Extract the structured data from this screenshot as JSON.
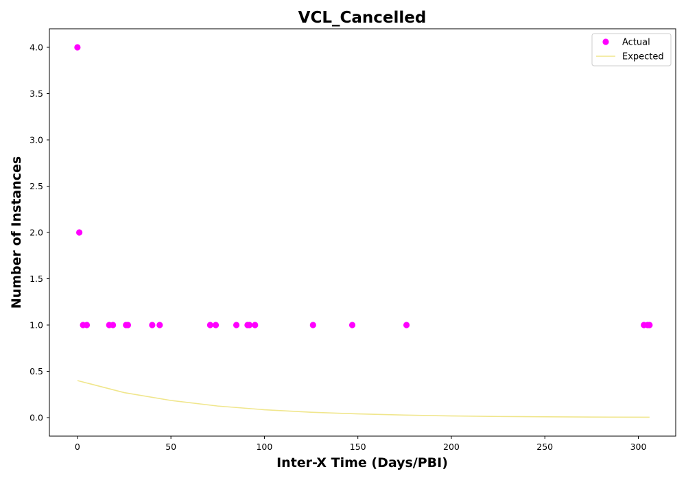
{
  "chart_data": {
    "type": "scatter",
    "title": "VCL_Cancelled",
    "xlabel": "Inter-X Time (Days/PBI)",
    "ylabel": "Number of Instances",
    "xlim": [
      -15,
      320
    ],
    "ylim": [
      -0.2,
      4.2
    ],
    "xticks": [
      0,
      50,
      100,
      150,
      200,
      250,
      300
    ],
    "yticks": [
      0.0,
      0.5,
      1.0,
      1.5,
      2.0,
      2.5,
      3.0,
      3.5,
      4.0
    ],
    "grid": false,
    "legend": {
      "placement": "top-right",
      "entries": [
        {
          "label": "Actual",
          "kind": "marker",
          "color": "#ff00ff"
        },
        {
          "label": "Expected",
          "kind": "line",
          "color": "#f0e68c"
        }
      ]
    },
    "series": [
      {
        "name": "Actual",
        "kind": "scatter",
        "color": "#ff00ff",
        "points": [
          [
            0,
            4
          ],
          [
            1,
            2
          ],
          [
            3,
            1
          ],
          [
            5,
            1
          ],
          [
            17,
            1
          ],
          [
            19,
            1
          ],
          [
            26,
            1
          ],
          [
            27,
            1
          ],
          [
            40,
            1
          ],
          [
            44,
            1
          ],
          [
            71,
            1
          ],
          [
            74,
            1
          ],
          [
            85,
            1
          ],
          [
            91,
            1
          ],
          [
            92,
            1
          ],
          [
            95,
            1
          ],
          [
            126,
            1
          ],
          [
            147,
            1
          ],
          [
            176,
            1
          ],
          [
            303,
            1
          ],
          [
            305,
            1
          ],
          [
            306,
            1
          ]
        ]
      },
      {
        "name": "Expected",
        "kind": "line",
        "color": "#f0e68c",
        "points": [
          [
            0,
            0.4
          ],
          [
            25,
            0.27
          ],
          [
            50,
            0.185
          ],
          [
            75,
            0.125
          ],
          [
            100,
            0.085
          ],
          [
            125,
            0.058
          ],
          [
            150,
            0.04
          ],
          [
            175,
            0.027
          ],
          [
            200,
            0.018
          ],
          [
            225,
            0.012
          ],
          [
            250,
            0.009
          ],
          [
            275,
            0.006
          ],
          [
            306,
            0.004
          ]
        ]
      }
    ]
  }
}
